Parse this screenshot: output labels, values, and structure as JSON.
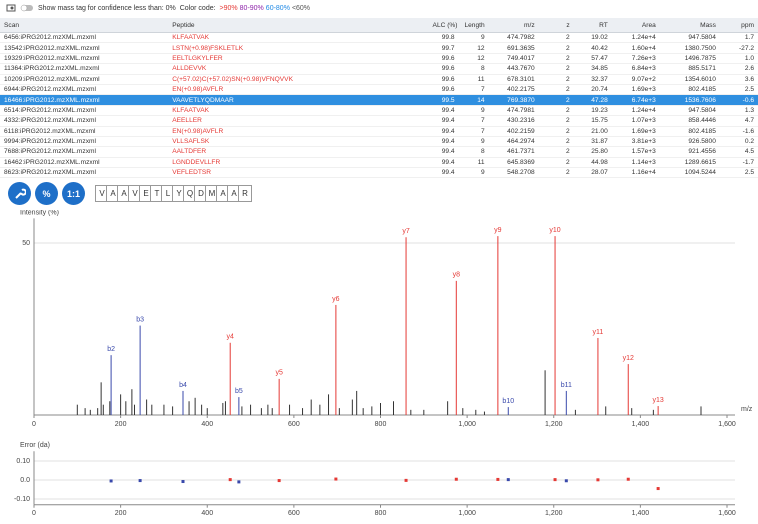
{
  "toolbar": {
    "checkbox_label": "Show mass tag for confidence less than: 0%",
    "color_code_label": "Color code:",
    "codes": [
      {
        "text": ">90%",
        "color": "#e53935"
      },
      {
        "text": "80-90%",
        "color": "#8e24aa"
      },
      {
        "text": "60-80%",
        "color": "#1e88e5"
      },
      {
        "text": "<60%",
        "color": "#555555"
      }
    ]
  },
  "table": {
    "columns": [
      "Scan",
      "Peptide",
      "ALC (%)",
      "Length",
      "m/z",
      "z",
      "RT",
      "Area",
      "Mass",
      "ppm"
    ],
    "selected_row": 6,
    "rows": [
      [
        "6456:iPRG2012.mzXML.mzxml",
        "KLFAATVAK",
        "99.8",
        "9",
        "474.7982",
        "2",
        "19.02",
        "1.24e+4",
        "947.5804",
        "1.7"
      ],
      [
        "13542:iPRG2012.mzXML.mzxml",
        "LSTN(+0.98)FSKLETLK",
        "99.7",
        "12",
        "691.3635",
        "2",
        "40.42",
        "1.60e+4",
        "1380.7500",
        "-27.2"
      ],
      [
        "19329:iPRG2012.mzXML.mzxml",
        "EELTLGKYLFER",
        "99.6",
        "12",
        "749.4017",
        "2",
        "57.47",
        "7.26e+3",
        "1496.7875",
        "1.0"
      ],
      [
        "11364:iPRG2012.mzXML.mzxml",
        "ALLDEVVK",
        "99.6",
        "8",
        "443.7670",
        "2",
        "34.85",
        "6.84e+3",
        "885.5171",
        "2.6"
      ],
      [
        "10209:iPRG2012.mzXML.mzxml",
        "C(+57.02)C(+57.02)SN(+0.98)VFNQVVK",
        "99.6",
        "11",
        "678.3101",
        "2",
        "32.37",
        "9.07e+2",
        "1354.6010",
        "3.6"
      ],
      [
        "6944:iPRG2012.mzXML.mzxml",
        "EN(+0.98)AVFLR",
        "99.6",
        "7",
        "402.2175",
        "2",
        "20.74",
        "1.69e+3",
        "802.4185",
        "2.5"
      ],
      [
        "16466:iPRG2012.mzXML.mzxml",
        "VAAVETLYQDMAAR",
        "99.5",
        "14",
        "769.3870",
        "2",
        "47.28",
        "6.74e+3",
        "1536.7606",
        "-0.6"
      ],
      [
        "6514:iPRG2012.mzXML.mzxml",
        "KLFAATVAK",
        "99.4",
        "9",
        "474.7981",
        "2",
        "19.23",
        "1.24e+4",
        "947.5804",
        "1.3"
      ],
      [
        "4332:iPRG2012.mzXML.mzxml",
        "AEELLER",
        "99.4",
        "7",
        "430.2316",
        "2",
        "15.75",
        "1.07e+3",
        "858.4446",
        "4.7"
      ],
      [
        "6118:iPRG2012.mzXML.mzxml",
        "EN(+0.98)AVFLR",
        "99.4",
        "7",
        "402.2159",
        "2",
        "21.00",
        "1.69e+3",
        "802.4185",
        "-1.6"
      ],
      [
        "9994:iPRG2012.mzXML.mzxml",
        "VLLSAFLSK",
        "99.4",
        "9",
        "464.2974",
        "2",
        "31.87",
        "3.81e+3",
        "926.5800",
        "0.2"
      ],
      [
        "7688:iPRG2012.mzXML.mzxml",
        "AALTDFER",
        "99.4",
        "8",
        "461.7371",
        "2",
        "25.80",
        "1.57e+3",
        "921.4556",
        "4.5"
      ],
      [
        "16462:iPRG2012.mzXML.mzxml",
        "LGNDDEVLLFR",
        "99.4",
        "11",
        "645.8369",
        "2",
        "44.98",
        "1.14e+3",
        "1289.6615",
        "-1.7"
      ],
      [
        "8623:iPRG2012.mzXML.mzxml",
        "VEFLEDTSR",
        "99.4",
        "9",
        "548.2708",
        "2",
        "28.07",
        "1.16e+4",
        "1094.5244",
        "2.5"
      ]
    ]
  },
  "buttons": [
    "%",
    "1:1"
  ],
  "sequence": [
    "V",
    "A",
    "A",
    "V",
    "E",
    "T",
    "L",
    "Y",
    "Q",
    "D",
    "M",
    "A",
    "A",
    "R"
  ],
  "chart_data": [
    {
      "type": "spectrum",
      "ylabel": "Intensity (%)",
      "xlabel": "m/z",
      "xlim": [
        0,
        1600
      ],
      "ylim": [
        0,
        56
      ],
      "grid": true,
      "xticks": [
        0,
        200,
        400,
        600,
        800,
        {
          "value": 1000,
          "label": "1,000"
        },
        {
          "value": 1200,
          "label": "1,200"
        },
        {
          "value": 1400,
          "label": "1,400"
        },
        {
          "value": 1600,
          "label": "1,600"
        }
      ],
      "yticks": [
        50
      ],
      "peaks": {
        "color": "#333333",
        "x": [
          100,
          118,
          130,
          147,
          155,
          160,
          175,
          200,
          212,
          226,
          232,
          260,
          272,
          300,
          320,
          358,
          372,
          387,
          400,
          436,
          442,
          480,
          500,
          525,
          540,
          550,
          590,
          620,
          640,
          660,
          680,
          705,
          735,
          745,
          760,
          780,
          800,
          830,
          870,
          900,
          955,
          990,
          1020,
          1040,
          1180,
          1250,
          1320,
          1380,
          1430,
          1540
        ],
        "values": [
          3,
          2,
          1.5,
          2,
          9.5,
          3,
          4,
          6,
          4,
          7.5,
          3,
          4.5,
          3,
          3,
          2.5,
          4,
          5,
          3,
          2,
          3.5,
          4,
          2.5,
          3,
          2,
          3,
          2,
          3,
          2,
          4.5,
          3,
          6,
          2,
          4.5,
          7,
          2,
          2.5,
          3.5,
          4,
          1.5,
          1.5,
          4,
          2,
          1.5,
          1,
          13,
          1.5,
          2.5,
          2,
          1.5,
          2.5
        ]
      },
      "b_ions": {
        "color": "#3949ab",
        "labels": [
          "b2",
          "b3",
          "b4",
          "b5",
          "b10",
          "b11"
        ],
        "x": [
          178,
          245,
          344,
          473,
          1095,
          1229
        ],
        "values": [
          17.4,
          26,
          7,
          5.2,
          2.3,
          7
        ]
      },
      "y_ions": {
        "color": "#e53935",
        "labels": [
          "y4",
          "y5",
          "y6",
          "y7",
          "y8",
          "y9",
          "y10",
          "y11",
          "y12",
          "y13"
        ],
        "x": [
          453,
          566,
          697,
          859,
          975,
          1071,
          1203,
          1302,
          1372,
          1441
        ],
        "values": [
          21,
          10.5,
          32,
          51.7,
          39,
          52,
          52,
          22.4,
          14.8,
          2.6
        ]
      }
    },
    {
      "type": "scatter",
      "ylabel": "Error (da)",
      "xlim": [
        0,
        1600
      ],
      "ylim": [
        -0.13,
        0.13
      ],
      "grid": true,
      "xticks": [
        0,
        200,
        400,
        600,
        800,
        {
          "value": 1000,
          "label": "1,000"
        },
        {
          "value": 1200,
          "label": "1,200"
        },
        {
          "value": 1400,
          "label": "1,400"
        },
        {
          "value": 1600,
          "label": "1,600"
        }
      ],
      "yticks": [
        {
          "value": 0.1,
          "label": "0.10"
        },
        {
          "value": 0,
          "label": "0.0"
        },
        {
          "value": -0.1,
          "label": "-0.10"
        }
      ],
      "b_ions": {
        "color": "#3949ab",
        "x": [
          178,
          245,
          344,
          473,
          1095,
          1229
        ],
        "values": [
          -0.005,
          -0.003,
          -0.008,
          -0.01,
          0.002,
          -0.004
        ]
      },
      "y_ions": {
        "color": "#e53935",
        "x": [
          453,
          566,
          697,
          859,
          975,
          1071,
          1203,
          1302,
          1372,
          1441
        ],
        "values": [
          0.002,
          -0.003,
          0.005,
          -0.002,
          0.004,
          0.003,
          0.002,
          0.001,
          0.004,
          -0.045
        ]
      }
    }
  ]
}
